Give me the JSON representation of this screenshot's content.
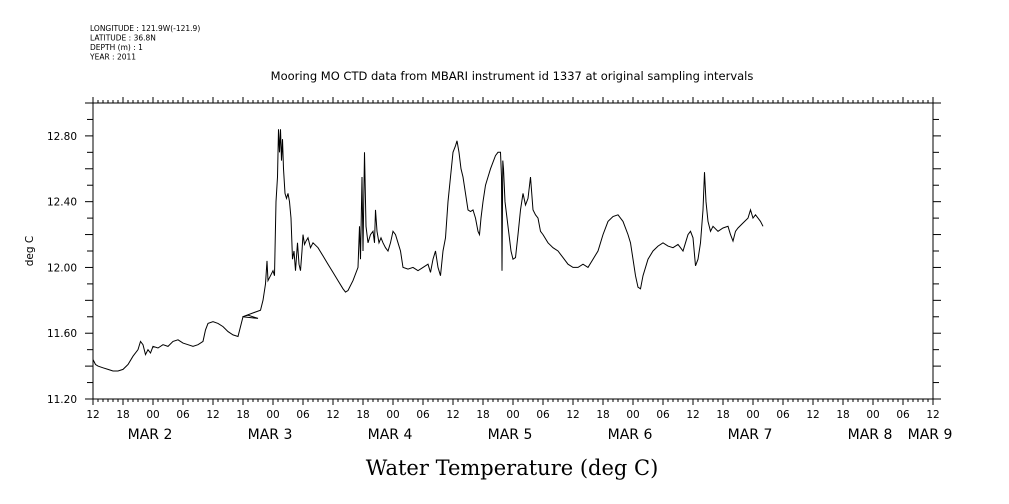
{
  "header": {
    "meta_lines": [
      "LONGITUDE : 121.9W(-121.9)",
      "LATITUDE : 36.8N",
      "DEPTH (m) : 1",
      "YEAR : 2011"
    ]
  },
  "chart_data": {
    "type": "line",
    "title": "Mooring MO CTD data from MBARI instrument id 1337 at original sampling intervals",
    "xlabel": "Water Temperature (deg C)",
    "ylabel": "deg C",
    "ylim": [
      11.2,
      13.0
    ],
    "yticks": [
      "11.20",
      "11.60",
      "12.00",
      "12.40",
      "12.80"
    ],
    "ytick_values": [
      11.2,
      11.6,
      12.0,
      12.4,
      12.8
    ],
    "x_unit": "hours since MAR 2 12:00",
    "xlim": [
      0,
      168
    ],
    "hour_tick_labels": [
      "12",
      "18",
      "00",
      "06",
      "12",
      "18",
      "00",
      "06",
      "12",
      "18",
      "00",
      "06",
      "12",
      "18",
      "00",
      "06",
      "12",
      "18",
      "00",
      "06",
      "12",
      "18",
      "00",
      "06",
      "12",
      "18",
      "00",
      "06",
      "12"
    ],
    "day_labels": [
      {
        "text": "MAR  2",
        "at_hour": 12
      },
      {
        "text": "MAR  3",
        "at_hour": 36
      },
      {
        "text": "MAR  4",
        "at_hour": 60
      },
      {
        "text": "MAR  5",
        "at_hour": 84
      },
      {
        "text": "MAR  6",
        "at_hour": 108
      },
      {
        "text": "MAR  7",
        "at_hour": 132
      },
      {
        "text": "MAR  8",
        "at_hour": 156
      },
      {
        "text": "MAR  9",
        "at_hour": 168
      }
    ],
    "grid": false,
    "series": [
      {
        "points": [
          [
            0,
            11.44
          ],
          [
            0.5,
            11.41
          ],
          [
            1,
            11.4
          ],
          [
            2,
            11.39
          ],
          [
            3,
            11.38
          ],
          [
            4,
            11.37
          ],
          [
            5,
            11.37
          ],
          [
            6,
            11.38
          ],
          [
            7,
            11.41
          ],
          [
            8,
            11.46
          ],
          [
            9,
            11.5
          ],
          [
            9.5,
            11.55
          ],
          [
            10,
            11.53
          ],
          [
            10.5,
            11.47
          ],
          [
            11,
            11.5
          ],
          [
            11.5,
            11.48
          ],
          [
            12,
            11.52
          ],
          [
            13,
            11.51
          ],
          [
            14,
            11.53
          ],
          [
            15,
            11.52
          ],
          [
            16,
            11.55
          ],
          [
            17,
            11.56
          ],
          [
            18,
            11.54
          ],
          [
            19,
            11.53
          ],
          [
            20,
            11.52
          ],
          [
            21,
            11.53
          ],
          [
            22,
            11.55
          ],
          [
            22.5,
            11.62
          ],
          [
            23,
            11.66
          ],
          [
            24,
            11.67
          ],
          [
            25,
            11.66
          ],
          [
            26,
            11.64
          ],
          [
            27,
            11.61
          ],
          [
            28,
            11.59
          ],
          [
            29,
            11.58
          ],
          [
            29.5,
            11.64
          ],
          [
            30,
            11.7
          ],
          [
            31,
            11.71
          ],
          [
            32,
            11.7
          ],
          [
            33,
            11.69
          ],
          [
            29.9,
            11.7
          ],
          [
            33.5,
            11.74
          ],
          [
            34,
            11.8
          ],
          [
            34.5,
            11.9
          ],
          [
            34.8,
            12.04
          ],
          [
            35,
            11.92
          ],
          [
            35.5,
            11.95
          ],
          [
            36,
            11.98
          ],
          [
            36.3,
            11.95
          ],
          [
            36.6,
            12.4
          ],
          [
            36.9,
            12.55
          ],
          [
            37.1,
            12.84
          ],
          [
            37.3,
            12.7
          ],
          [
            37.5,
            12.84
          ],
          [
            37.7,
            12.65
          ],
          [
            37.9,
            12.78
          ],
          [
            38.1,
            12.6
          ],
          [
            38.4,
            12.45
          ],
          [
            38.7,
            12.42
          ],
          [
            39,
            12.45
          ],
          [
            39.3,
            12.4
          ],
          [
            39.6,
            12.3
          ],
          [
            39.9,
            12.05
          ],
          [
            40.2,
            12.1
          ],
          [
            40.5,
            11.98
          ],
          [
            40.9,
            12.15
          ],
          [
            41.2,
            12.02
          ],
          [
            41.5,
            11.98
          ],
          [
            41.8,
            12.1
          ],
          [
            42,
            12.2
          ],
          [
            42.3,
            12.14
          ],
          [
            42.6,
            12.16
          ],
          [
            43,
            12.18
          ],
          [
            43.5,
            12.12
          ],
          [
            44,
            12.15
          ],
          [
            45,
            12.12
          ],
          [
            46,
            12.07
          ],
          [
            47,
            12.02
          ],
          [
            48,
            11.97
          ],
          [
            49,
            11.92
          ],
          [
            50,
            11.87
          ],
          [
            50.5,
            11.85
          ],
          [
            51,
            11.86
          ],
          [
            52,
            11.92
          ],
          [
            53,
            12.0
          ],
          [
            53.3,
            12.25
          ],
          [
            53.5,
            12.05
          ],
          [
            53.8,
            12.55
          ],
          [
            54,
            12.1
          ],
          [
            54.3,
            12.7
          ],
          [
            54.6,
            12.25
          ],
          [
            55,
            12.15
          ],
          [
            55.5,
            12.2
          ],
          [
            56,
            12.22
          ],
          [
            56.3,
            12.15
          ],
          [
            56.5,
            12.35
          ],
          [
            56.8,
            12.22
          ],
          [
            57.2,
            12.15
          ],
          [
            57.6,
            12.18
          ],
          [
            58,
            12.15
          ],
          [
            58.5,
            12.12
          ],
          [
            59,
            12.1
          ],
          [
            59.5,
            12.15
          ],
          [
            60,
            12.22
          ],
          [
            60.5,
            12.2
          ],
          [
            61,
            12.15
          ],
          [
            61.5,
            12.1
          ],
          [
            62,
            12.0
          ],
          [
            63,
            11.99
          ],
          [
            64,
            12.0
          ],
          [
            65,
            11.98
          ],
          [
            66,
            12.0
          ],
          [
            67,
            12.02
          ],
          [
            67.5,
            11.97
          ],
          [
            68,
            12.05
          ],
          [
            68.5,
            12.1
          ],
          [
            69,
            12.0
          ],
          [
            69.5,
            11.95
          ],
          [
            70,
            12.1
          ],
          [
            70.5,
            12.18
          ],
          [
            71,
            12.4
          ],
          [
            71.5,
            12.55
          ],
          [
            72,
            12.7
          ],
          [
            72.5,
            12.74
          ],
          [
            72.8,
            12.77
          ],
          [
            73.2,
            12.7
          ],
          [
            73.6,
            12.6
          ],
          [
            74,
            12.55
          ],
          [
            74.5,
            12.45
          ],
          [
            75,
            12.35
          ],
          [
            75.5,
            12.34
          ],
          [
            76,
            12.35
          ],
          [
            76.5,
            12.3
          ],
          [
            77,
            12.22
          ],
          [
            77.3,
            12.2
          ],
          [
            77.6,
            12.3
          ],
          [
            78,
            12.4
          ],
          [
            78.5,
            12.5
          ],
          [
            79,
            12.55
          ],
          [
            79.5,
            12.6
          ],
          [
            80,
            12.64
          ],
          [
            80.5,
            12.68
          ],
          [
            81,
            12.7
          ],
          [
            81.5,
            12.7
          ],
          [
            81.7,
            12.55
          ],
          [
            81.8,
            11.98
          ],
          [
            81.95,
            12.65
          ],
          [
            82.1,
            12.6
          ],
          [
            82.4,
            12.4
          ],
          [
            82.8,
            12.3
          ],
          [
            83.2,
            12.2
          ],
          [
            83.6,
            12.1
          ],
          [
            84,
            12.05
          ],
          [
            84.5,
            12.06
          ],
          [
            85,
            12.2
          ],
          [
            85.5,
            12.35
          ],
          [
            86,
            12.45
          ],
          [
            86.5,
            12.38
          ],
          [
            87,
            12.42
          ],
          [
            87.5,
            12.55
          ],
          [
            88,
            12.35
          ],
          [
            88.5,
            12.32
          ],
          [
            89,
            12.3
          ],
          [
            89.5,
            12.22
          ],
          [
            90,
            12.2
          ],
          [
            91,
            12.15
          ],
          [
            92,
            12.12
          ],
          [
            93,
            12.1
          ],
          [
            94,
            12.06
          ],
          [
            95,
            12.02
          ],
          [
            96,
            12.0
          ],
          [
            97,
            12.0
          ],
          [
            98,
            12.02
          ],
          [
            99,
            12.0
          ],
          [
            100,
            12.05
          ],
          [
            101,
            12.1
          ],
          [
            102,
            12.2
          ],
          [
            103,
            12.28
          ],
          [
            104,
            12.31
          ],
          [
            105,
            12.32
          ],
          [
            106,
            12.28
          ],
          [
            107,
            12.2
          ],
          [
            107.5,
            12.15
          ],
          [
            108,
            12.05
          ],
          [
            108.5,
            11.95
          ],
          [
            109,
            11.88
          ],
          [
            109.5,
            11.87
          ],
          [
            110,
            11.95
          ],
          [
            111,
            12.05
          ],
          [
            112,
            12.1
          ],
          [
            113,
            12.13
          ],
          [
            114,
            12.15
          ],
          [
            115,
            12.13
          ],
          [
            116,
            12.12
          ],
          [
            117,
            12.14
          ],
          [
            117.5,
            12.12
          ],
          [
            118,
            12.1
          ],
          [
            118.5,
            12.15
          ],
          [
            119,
            12.2
          ],
          [
            119.5,
            12.22
          ],
          [
            120,
            12.18
          ],
          [
            120.5,
            12.01
          ],
          [
            121,
            12.05
          ],
          [
            121.5,
            12.15
          ],
          [
            122,
            12.35
          ],
          [
            122.3,
            12.58
          ],
          [
            122.6,
            12.4
          ],
          [
            123,
            12.28
          ],
          [
            123.5,
            12.22
          ],
          [
            124,
            12.25
          ],
          [
            125,
            12.22
          ],
          [
            126,
            12.24
          ],
          [
            127,
            12.25
          ],
          [
            127.5,
            12.2
          ],
          [
            128,
            12.16
          ],
          [
            128.5,
            12.22
          ],
          [
            129,
            12.24
          ],
          [
            130,
            12.27
          ],
          [
            131,
            12.3
          ],
          [
            131.5,
            12.35
          ],
          [
            132,
            12.3
          ],
          [
            132.5,
            12.32
          ],
          [
            133,
            12.3
          ],
          [
            133.5,
            12.28
          ],
          [
            134,
            12.25
          ]
        ]
      }
    ]
  }
}
